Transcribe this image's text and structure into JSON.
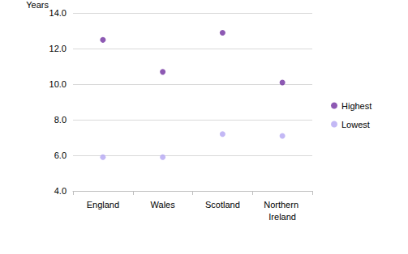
{
  "chart_data": {
    "type": "scatter",
    "y_label": "Years",
    "categories": [
      "England",
      "Wales",
      "Scotland",
      "Northern Ireland"
    ],
    "series": [
      {
        "name": "Highest",
        "color": "#7030a0",
        "values": [
          12.5,
          10.7,
          12.9,
          10.1
        ]
      },
      {
        "name": "Lowest",
        "color": "#b4a6f2",
        "values": [
          5.9,
          5.9,
          7.2,
          7.1
        ]
      }
    ],
    "ylim": [
      4,
      14
    ],
    "yticks": [
      {
        "value": 4,
        "label": "4.0"
      },
      {
        "value": 6,
        "label": "6.0"
      },
      {
        "value": 8,
        "label": "8.0"
      },
      {
        "value": 10,
        "label": "10.0"
      },
      {
        "value": 12,
        "label": "12.0"
      },
      {
        "value": 14,
        "label": "14.0"
      }
    ],
    "grid": true,
    "legend": "right",
    "marker": "circle"
  }
}
